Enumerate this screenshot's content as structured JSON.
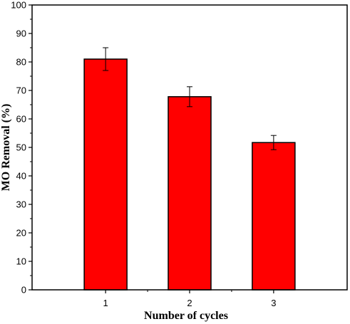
{
  "chart_data": {
    "type": "bar",
    "title": "",
    "xlabel": "Number of cycles",
    "ylabel": "MO Removal (%)",
    "categories": [
      "1",
      "2",
      "3"
    ],
    "values": [
      81,
      67.8,
      51.7
    ],
    "errors": [
      4,
      3.5,
      2.5
    ],
    "ylim": [
      0,
      100
    ],
    "yticks": [
      0,
      10,
      20,
      30,
      40,
      50,
      60,
      70,
      80,
      90,
      100
    ],
    "grid": false,
    "bar_color": "#ff0000",
    "edge_color": "#000000"
  }
}
